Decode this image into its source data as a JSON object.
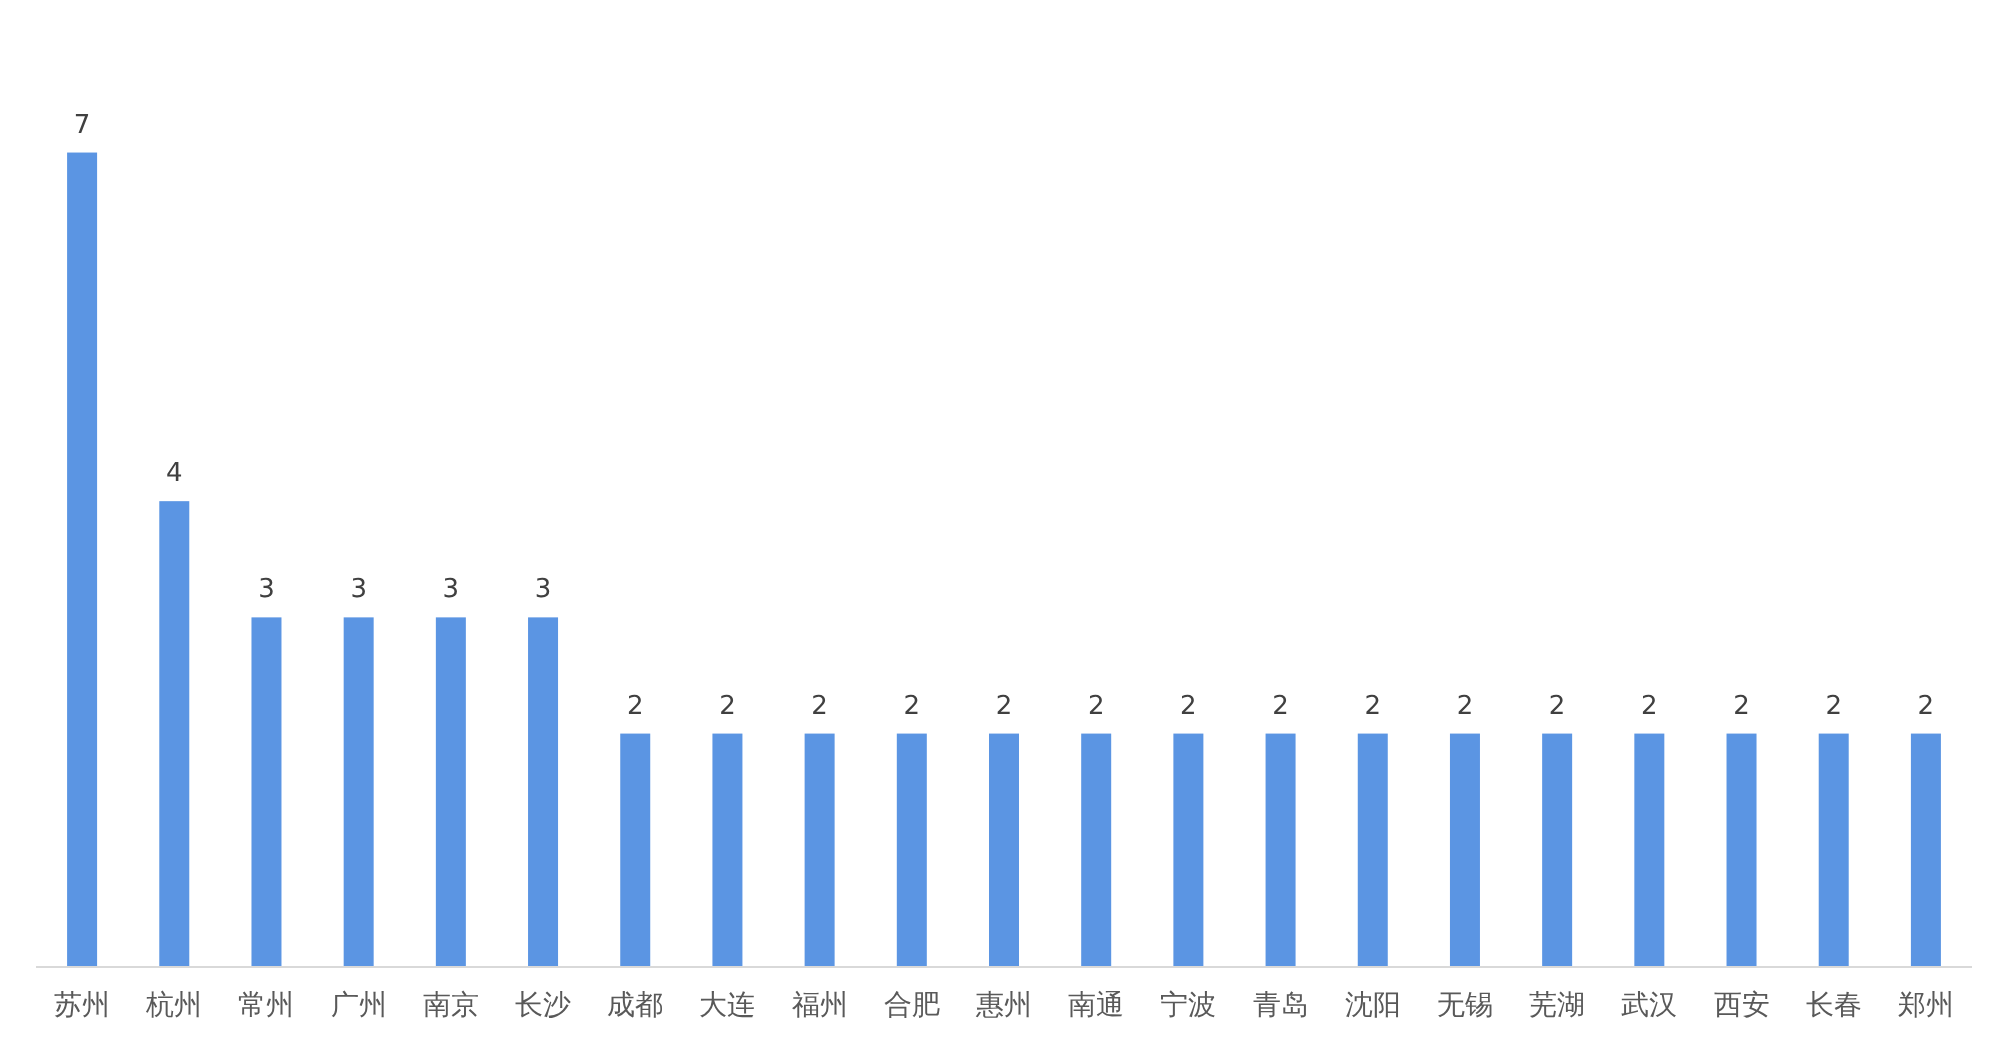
{
  "chart_data": {
    "type": "bar",
    "categories": [
      "苏州",
      "杭州",
      "常州",
      "广州",
      "南京",
      "长沙",
      "成都",
      "大连",
      "福州",
      "合肥",
      "惠州",
      "南通",
      "宁波",
      "青岛",
      "沈阳",
      "无锡",
      "芜湖",
      "武汉",
      "西安",
      "长春",
      "郑州"
    ],
    "values": [
      7,
      4,
      3,
      3,
      3,
      3,
      2,
      2,
      2,
      2,
      2,
      2,
      2,
      2,
      2,
      2,
      2,
      2,
      2,
      2,
      2
    ],
    "color": "#5b95e3",
    "data_labels": true
  }
}
